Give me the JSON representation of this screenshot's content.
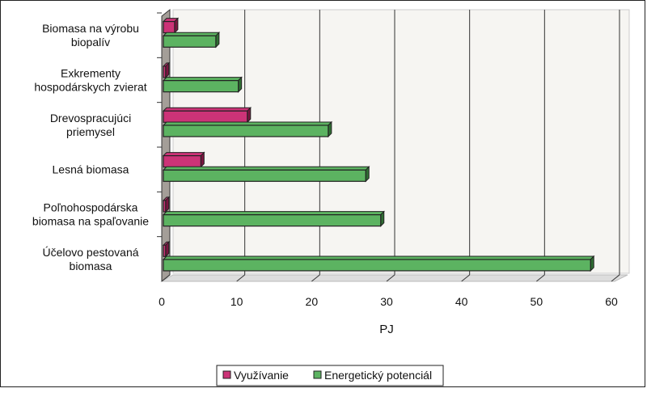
{
  "chart_data": {
    "type": "bar",
    "orientation": "horizontal",
    "categories": [
      [
        "Biomasa na výrobu",
        "biopalív"
      ],
      [
        "Exkrementy",
        "hospodárskych zvierat"
      ],
      [
        "Drevospracujúci",
        "priemysel"
      ],
      [
        "Lesná biomasa"
      ],
      [
        "Poľnohospodárska",
        "biomasa na spaľovanie"
      ],
      [
        "Účelovo pestovaná",
        "biomasa"
      ]
    ],
    "series": [
      {
        "name": "Využívanie",
        "color": "#cc3377",
        "values": [
          1.5,
          0.3,
          11.2,
          5,
          0.3,
          0.3
        ]
      },
      {
        "name": "Energetický potenciál",
        "color": "#5cb361",
        "values": [
          7,
          10,
          22,
          27,
          29,
          57
        ]
      }
    ],
    "xlabel": "PJ",
    "xlim": [
      0,
      60
    ],
    "xticks": [
      "0",
      "10",
      "20",
      "30",
      "40",
      "50",
      "60"
    ],
    "grid": true,
    "legend": "bottom"
  }
}
